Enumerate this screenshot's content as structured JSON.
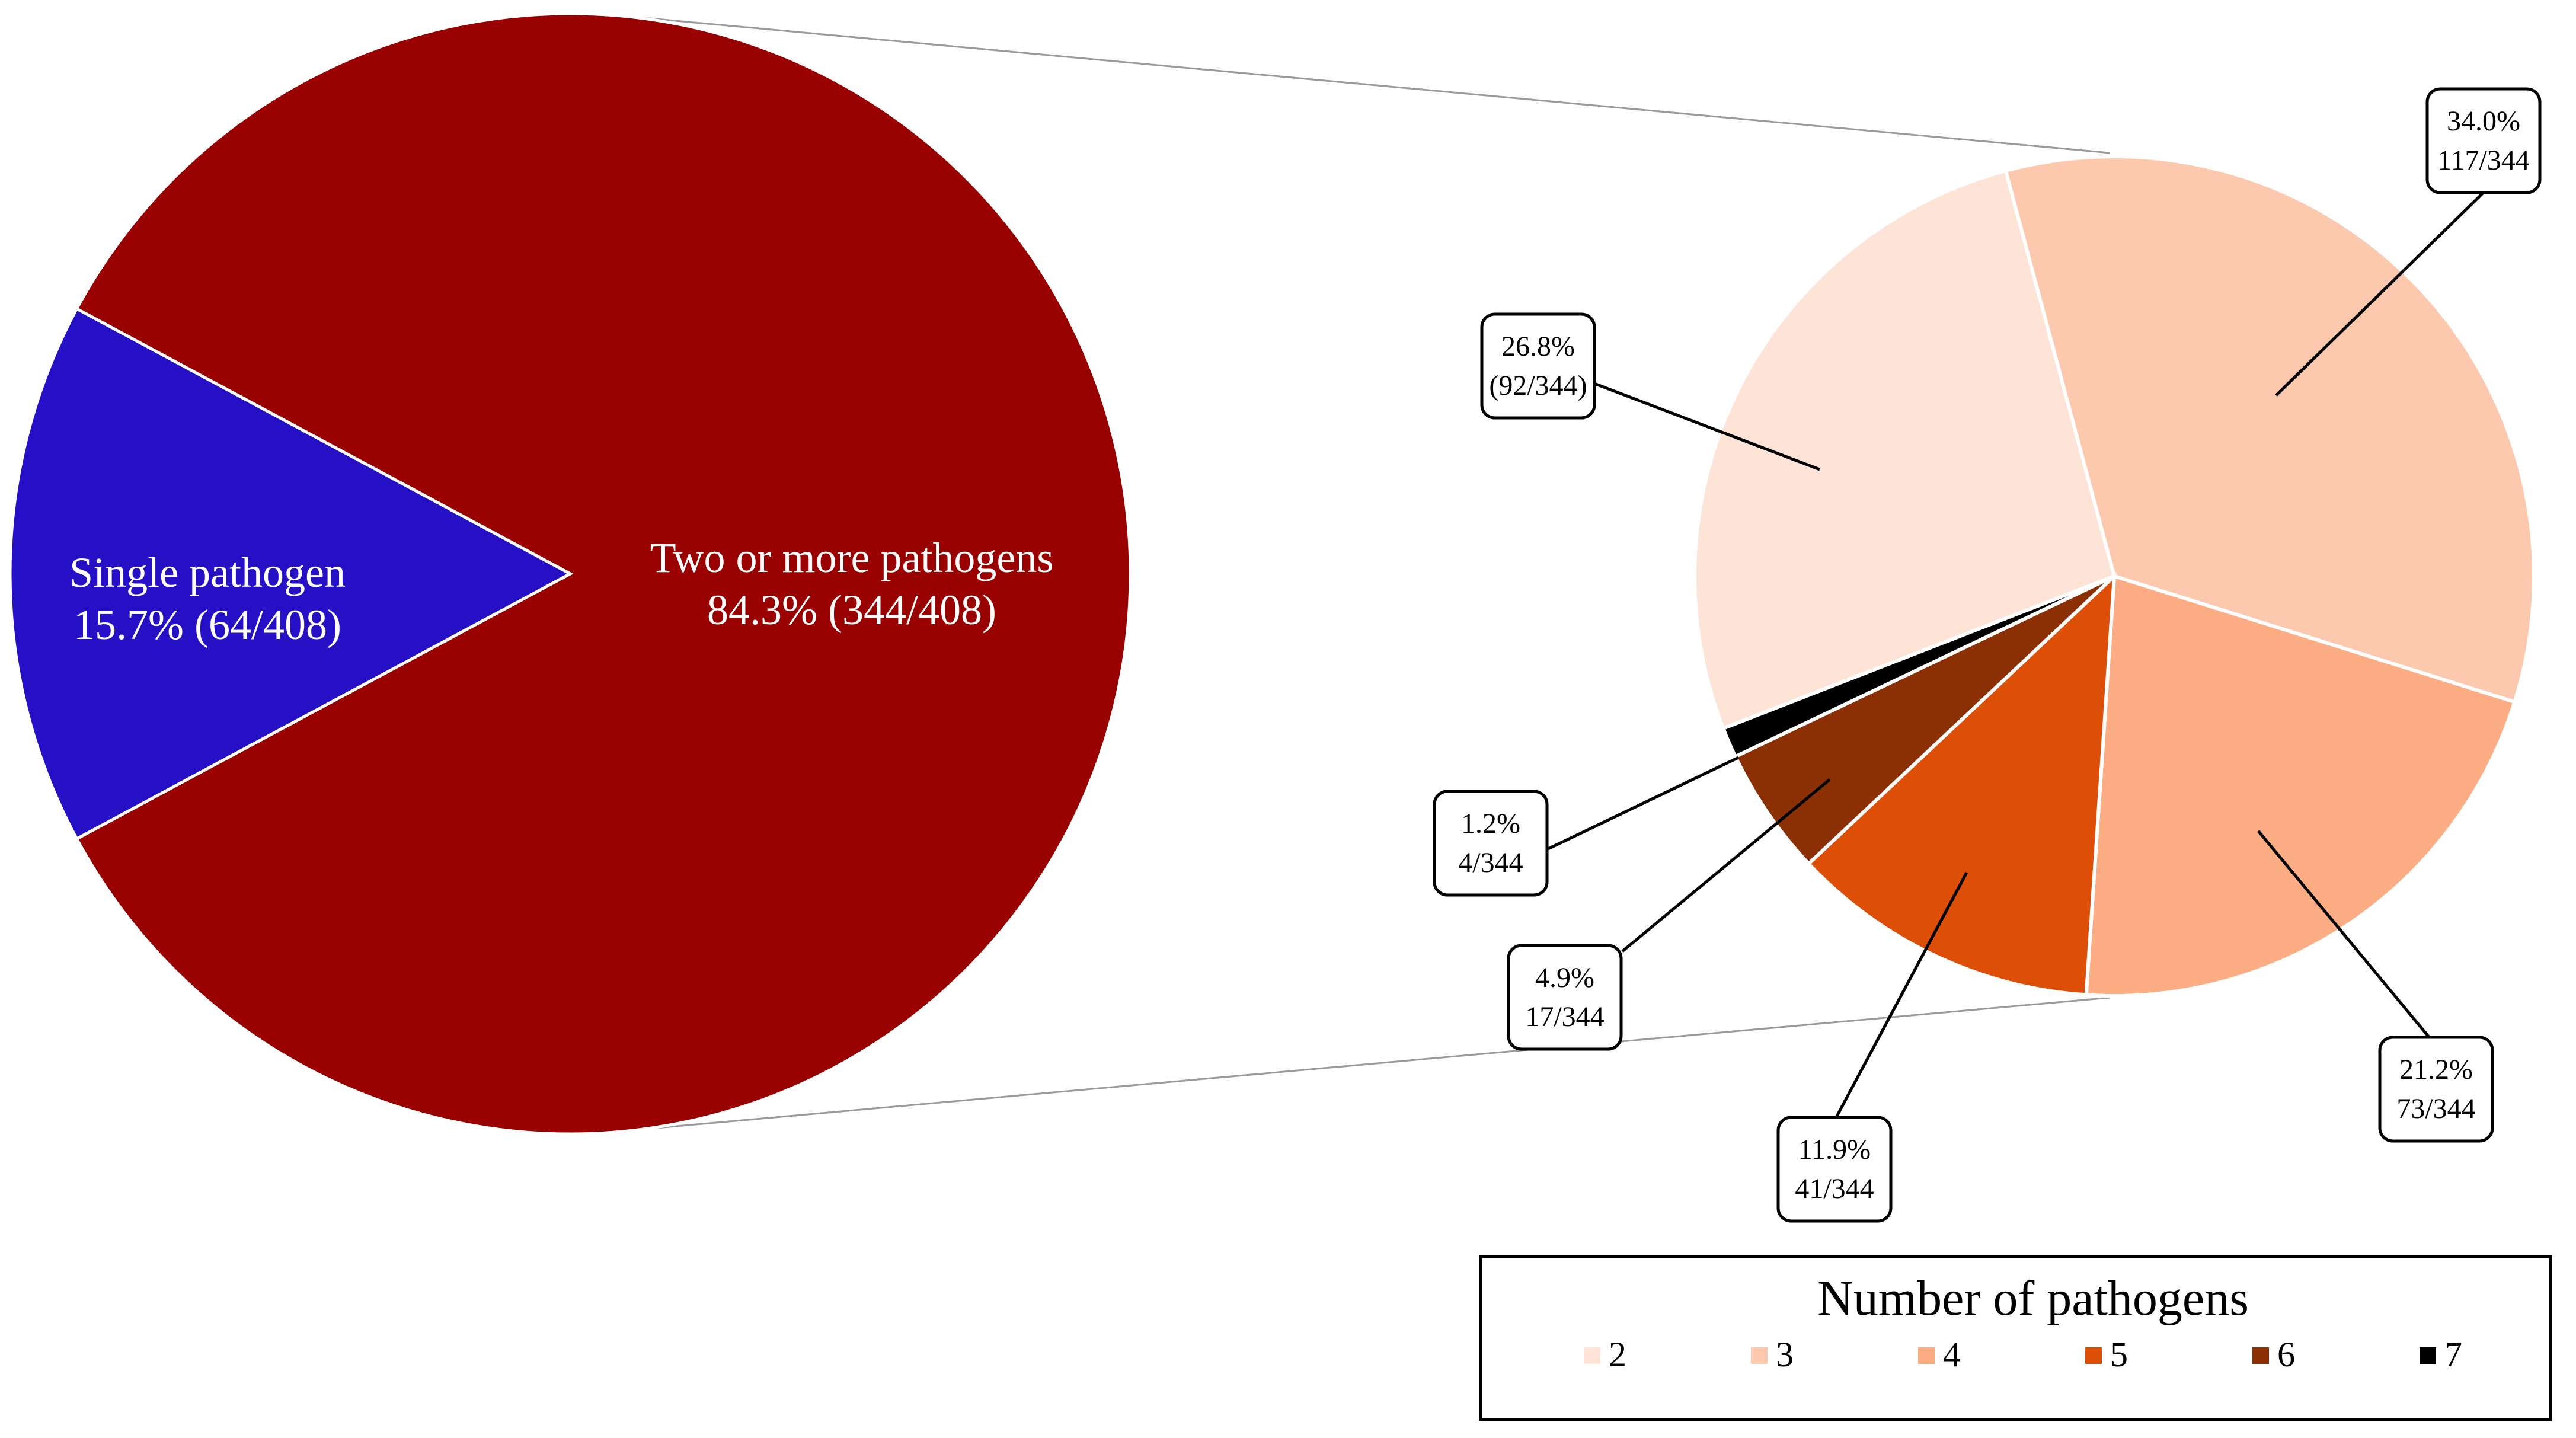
{
  "chart_data": [
    {
      "type": "pie",
      "slices": [
        {
          "label": "Single pathogen",
          "value_text": "15.7% (64/408)",
          "value": 64,
          "percent": 15.7,
          "color": "#2510C6"
        },
        {
          "label": "Two or more pathogens",
          "value_text": "84.3% (344/408)",
          "value": 344,
          "percent": 84.3,
          "color": "#990000"
        }
      ],
      "total": 408
    },
    {
      "type": "pie",
      "legend_title": "Number of pathogens",
      "legend_position": "bottom-right",
      "total": 344,
      "slices": [
        {
          "category": "2",
          "percent": 26.8,
          "count": 92,
          "pct_text": "26.8%",
          "count_text": "(92/344)",
          "color": "#FDE4D6"
        },
        {
          "category": "3",
          "percent": 34.0,
          "count": 117,
          "pct_text": "34.0%",
          "count_text": "117/344",
          "color": "#FCC8AE"
        },
        {
          "category": "4",
          "percent": 21.2,
          "count": 73,
          "pct_text": "21.2%",
          "count_text": "73/344",
          "color": "#FCAD84"
        },
        {
          "category": "5",
          "percent": 11.9,
          "count": 41,
          "pct_text": "11.9%",
          "count_text": "41/344",
          "color": "#DD4F07"
        },
        {
          "category": "6",
          "percent": 4.9,
          "count": 17,
          "pct_text": "4.9%",
          "count_text": "17/344",
          "color": "#8B3004"
        },
        {
          "category": "7",
          "percent": 1.2,
          "count": 4,
          "pct_text": "1.2%",
          "count_text": "4/344",
          "color": "#000000"
        }
      ]
    }
  ]
}
